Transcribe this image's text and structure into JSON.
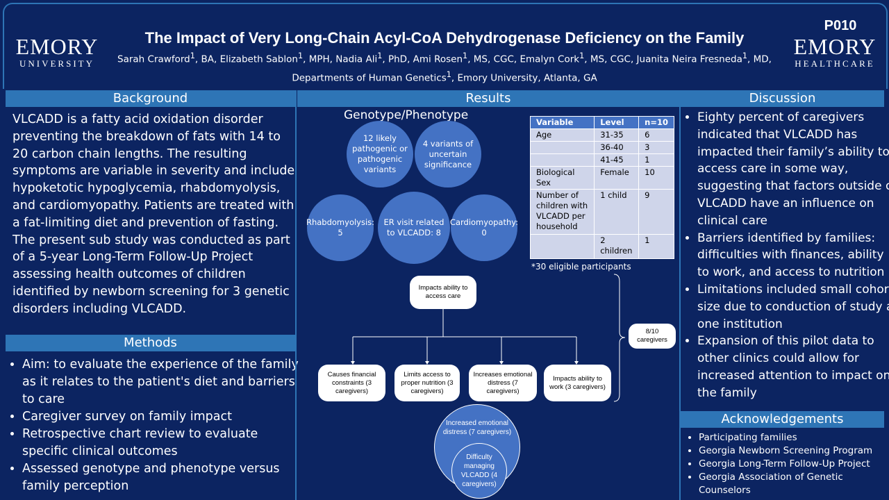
{
  "header": {
    "logo_left": {
      "line1": "EMORY",
      "line2": "UNIVERSITY"
    },
    "title": "The Impact of Very Long-Chain Acyl-CoA Dehydrogenase Deficiency on the Family",
    "poster_id": "P010",
    "logo_right": {
      "line1": "EMORY",
      "line2": "HEALTHCARE"
    },
    "authors": [
      {
        "name": "Sarah Crawford",
        "affil": "1",
        "suffix": ", BA, "
      },
      {
        "name": "Elizabeth Sablon",
        "affil": "1",
        "suffix": ", MPH, "
      },
      {
        "name": "Nadia Ali",
        "affil": "1",
        "suffix": ", PhD, "
      },
      {
        "name": "Ami Rosen",
        "affil": "1",
        "suffix": ", MS, CGC, "
      },
      {
        "name": "Emalyn Cork",
        "affil": "1",
        "suffix": ", MS, CGC, "
      },
      {
        "name": "Juanita Neira Fresneda",
        "affil": "1",
        "suffix": ", MD,"
      }
    ],
    "affiliation": {
      "name": "Departments of Human Genetics",
      "affil": "1",
      "suffix": ", Emory University, Atlanta, GA"
    }
  },
  "background": {
    "heading": "Background",
    "text": "VLCADD is a fatty acid oxidation disorder preventing the breakdown of fats with 14 to 20 carbon chain lengths. The resulting symptoms are variable in severity and include hypoketotic hypoglycemia, rhabdomyolysis, and cardiomyopathy.  Patients are treated with a fat-limiting diet and prevention of fasting. The present sub study was conducted as part of a 5-year Long-Term Follow-Up Project assessing health outcomes of children identified by newborn screening for 3 genetic disorders including VLCADD."
  },
  "methods": {
    "heading": "Methods",
    "bullets": [
      "Aim: to evaluate the experience of the family as it relates to the patient's diet and barriers to care",
      "Caregiver survey on family impact",
      "Retrospective chart review to evaluate specific clinical outcomes",
      "Assessed genotype and phenotype versus family perception"
    ]
  },
  "results": {
    "heading": "Results",
    "genotype_heading": "Genotype/Phenotype",
    "circles": [
      "12 likely pathogenic or pathogenic variants",
      "4 variants of uncertain significance",
      "Rhabdomyolysis: 5",
      "ER visit related to VLCADD: 8",
      "Cardiomyopathy: 0"
    ],
    "table": {
      "header": [
        "Variable",
        "Level",
        "n=10"
      ],
      "rows": [
        [
          "Age",
          "31-35",
          "6"
        ],
        [
          null,
          "36-40",
          "3"
        ],
        [
          null,
          "41-45",
          "1"
        ],
        [
          "Biological Sex",
          "Female",
          "10"
        ],
        [
          "Number of children with VLCADD per household",
          "1 child",
          "9"
        ],
        [
          null,
          "2 children",
          "1"
        ]
      ]
    },
    "table_note": "*30 eligible participants",
    "flow": {
      "top": "Impacts ability to access care",
      "boxes": [
        "Causes financial constraints (3 caregivers)",
        "Limits access to proper nutrition (3 caregivers)",
        "Increases emotional distress (7 caregivers)",
        "Impacts ability to work (3 caregivers)"
      ],
      "side": "8/10 caregivers",
      "bottom_outer": "Increased emotional distress (7 caregivers)",
      "bottom_inner": "Difficulty managing VLCADD (4 caregivers)"
    }
  },
  "discussion": {
    "heading": "Discussion",
    "bullets": [
      "Eighty percent of caregivers indicated that VLCADD has impacted their family’s ability to access care in some way, suggesting that factors outside of VLCADD have an influence on clinical care",
      "Barriers identified by families: difficulties with finances, ability to work, and access to nutrition",
      "Limitations included small cohort size due to conduction of study at one institution",
      "Expansion of this pilot data to other clinics could allow for increased attention to impact on the family"
    ]
  },
  "acknowledgements": {
    "heading": "Acknowledgements",
    "items": [
      "Participating families",
      "Georgia Newborn Screening Program",
      "Georgia Long-Term Follow-Up Project",
      "Georgia Association of Genetic Counselors"
    ]
  }
}
